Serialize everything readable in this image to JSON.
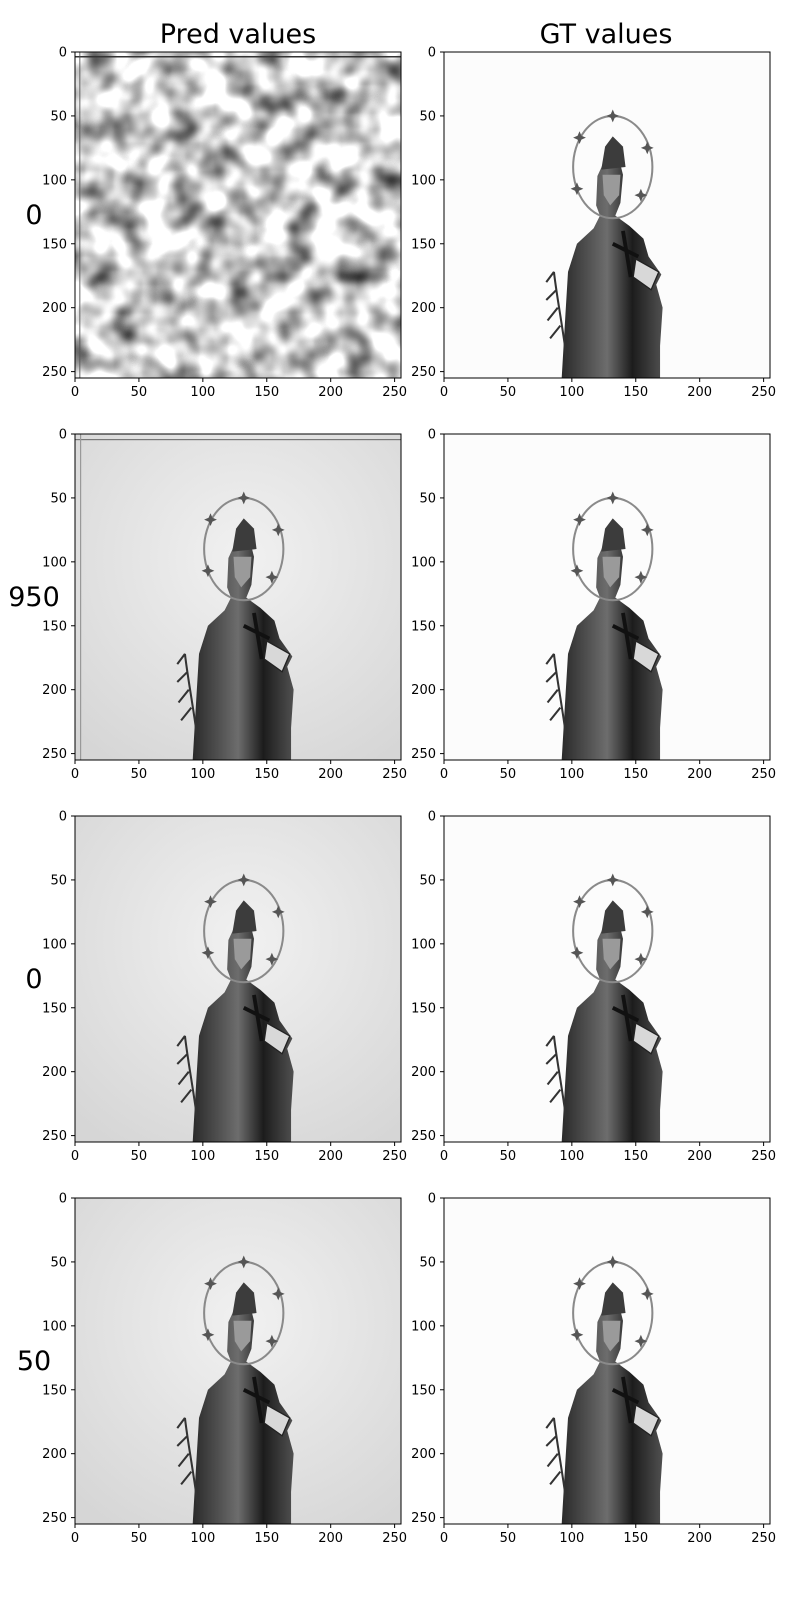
{
  "figure": {
    "column_titles": [
      "Pred values",
      "GT values"
    ],
    "row_labels": [
      "0",
      "950",
      "0",
      "50"
    ]
  },
  "chart_data": [
    {
      "type": "heatmap",
      "title": "Pred values",
      "row_label": "0",
      "content": "pred-noise",
      "xlim": [
        0,
        255
      ],
      "ylim": [
        255,
        0
      ],
      "xticks": [
        0,
        50,
        100,
        150,
        200,
        250
      ],
      "yticks": [
        0,
        50,
        100,
        150,
        200,
        250
      ],
      "colormap": "gray"
    },
    {
      "type": "heatmap",
      "title": "GT values",
      "row_label": "0",
      "content": "gt-statue",
      "xlim": [
        0,
        255
      ],
      "ylim": [
        255,
        0
      ],
      "xticks": [
        0,
        50,
        100,
        150,
        200,
        250
      ],
      "yticks": [
        0,
        50,
        100,
        150,
        200,
        250
      ],
      "colormap": "gray"
    },
    {
      "type": "heatmap",
      "title": "",
      "row_label": "950",
      "content": "pred-statue",
      "xlim": [
        0,
        255
      ],
      "ylim": [
        255,
        0
      ],
      "xticks": [
        0,
        50,
        100,
        150,
        200,
        250
      ],
      "yticks": [
        0,
        50,
        100,
        150,
        200,
        250
      ],
      "colormap": "gray"
    },
    {
      "type": "heatmap",
      "title": "",
      "row_label": "950",
      "content": "gt-statue",
      "xlim": [
        0,
        255
      ],
      "ylim": [
        255,
        0
      ],
      "xticks": [
        0,
        50,
        100,
        150,
        200,
        250
      ],
      "yticks": [
        0,
        50,
        100,
        150,
        200,
        250
      ],
      "colormap": "gray"
    },
    {
      "type": "heatmap",
      "title": "",
      "row_label": "0",
      "content": "pred-statue",
      "xlim": [
        0,
        255
      ],
      "ylim": [
        255,
        0
      ],
      "xticks": [
        0,
        50,
        100,
        150,
        200,
        250
      ],
      "yticks": [
        0,
        50,
        100,
        150,
        200,
        250
      ],
      "colormap": "gray"
    },
    {
      "type": "heatmap",
      "title": "",
      "row_label": "0",
      "content": "gt-statue",
      "xlim": [
        0,
        255
      ],
      "ylim": [
        255,
        0
      ],
      "xticks": [
        0,
        50,
        100,
        150,
        200,
        250
      ],
      "yticks": [
        0,
        50,
        100,
        150,
        200,
        250
      ],
      "colormap": "gray"
    },
    {
      "type": "heatmap",
      "title": "",
      "row_label": "50",
      "content": "pred-statue",
      "xlim": [
        0,
        255
      ],
      "ylim": [
        255,
        0
      ],
      "xticks": [
        0,
        50,
        100,
        150,
        200,
        250
      ],
      "yticks": [
        0,
        50,
        100,
        150,
        200,
        250
      ],
      "colormap": "gray"
    },
    {
      "type": "heatmap",
      "title": "",
      "row_label": "50",
      "content": "gt-statue",
      "xlim": [
        0,
        255
      ],
      "ylim": [
        255,
        0
      ],
      "xticks": [
        0,
        50,
        100,
        150,
        200,
        250
      ],
      "yticks": [
        0,
        50,
        100,
        150,
        200,
        250
      ],
      "colormap": "gray"
    }
  ]
}
